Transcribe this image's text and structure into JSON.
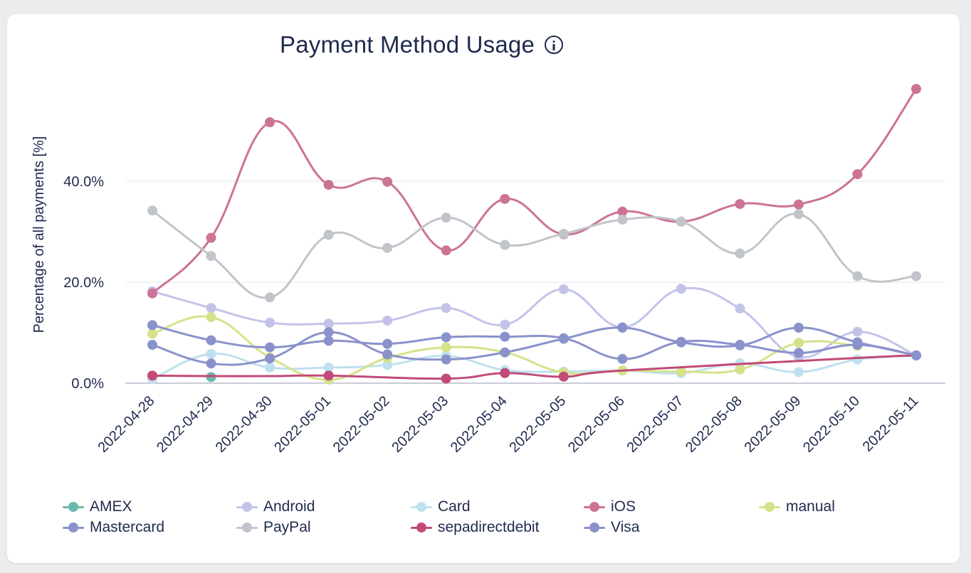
{
  "header": {
    "title": "Payment Method Usage",
    "info_icon": "info-icon"
  },
  "chart_data": {
    "type": "line",
    "ylabel": "Percentage of all payments [%]",
    "xlabel": "",
    "ylim": [
      0,
      60
    ],
    "yticks": [
      0,
      20,
      40
    ],
    "ytick_labels": [
      "0.0%",
      "20.0%",
      "40.0%"
    ],
    "grid": true,
    "legend_position": "bottom",
    "categories": [
      "2022-04-28",
      "2022-04-29",
      "2022-04-30",
      "2022-05-01",
      "2022-05-02",
      "2022-05-03",
      "2022-05-04",
      "2022-05-05",
      "2022-05-06",
      "2022-05-07",
      "2022-05-08",
      "2022-05-09",
      "2022-05-10",
      "2022-05-11"
    ],
    "series": [
      {
        "name": "AMEX",
        "color": "#6bb8ad",
        "values": [
          null,
          1.2,
          null,
          null,
          null,
          null,
          null,
          null,
          null,
          null,
          null,
          null,
          null,
          null
        ]
      },
      {
        "name": "Android",
        "color": "#c3c3ea",
        "values": [
          18.2,
          14.9,
          12.0,
          11.8,
          12.4,
          14.9,
          11.6,
          18.6,
          11.1,
          18.7,
          14.8,
          5.2,
          10.2,
          5.5
        ]
      },
      {
        "name": "Card",
        "color": "#bfe0ee",
        "values": [
          0.8,
          5.8,
          3.1,
          3.1,
          3.6,
          5.4,
          2.6,
          2.3,
          2.5,
          2.0,
          3.9,
          2.2,
          4.7,
          5.5
        ]
      },
      {
        "name": "iOS",
        "color": "#cc7396",
        "values": [
          17.8,
          28.8,
          51.7,
          39.3,
          39.9,
          26.3,
          36.5,
          29.5,
          34.0,
          32.0,
          35.5,
          35.4,
          41.4,
          58.3
        ]
      },
      {
        "name": "manual",
        "color": "#d5e28a",
        "values": [
          9.8,
          13.1,
          5.1,
          0.7,
          5.0,
          7.1,
          6.1,
          2.1,
          2.5,
          2.3,
          2.7,
          8.0,
          7.4,
          null
        ]
      },
      {
        "name": "Mastercard",
        "color": "#8a92cc",
        "values": [
          7.6,
          3.9,
          4.9,
          10.1,
          5.7,
          4.7,
          6.1,
          8.8,
          11.0,
          8.1,
          7.5,
          11.0,
          8.1,
          5.5
        ]
      },
      {
        "name": "PayPal",
        "color": "#c1c4ca",
        "values": [
          34.2,
          25.2,
          17.0,
          29.4,
          26.8,
          32.8,
          27.4,
          29.6,
          32.4,
          32.0,
          25.7,
          33.5,
          21.2,
          21.2
        ]
      },
      {
        "name": "sepadirectdebit",
        "color": "#c24a78",
        "values": [
          1.5,
          1.4,
          1.4,
          1.5,
          null,
          0.9,
          2.0,
          1.3,
          2.5,
          null,
          null,
          null,
          5.0,
          5.5
        ]
      },
      {
        "name": "Visa",
        "color": "#8a92cc",
        "values": [
          11.5,
          8.5,
          7.1,
          8.4,
          7.8,
          9.1,
          9.2,
          8.9,
          4.8,
          8.2,
          7.6,
          6.0,
          7.6,
          5.5
        ]
      }
    ]
  }
}
